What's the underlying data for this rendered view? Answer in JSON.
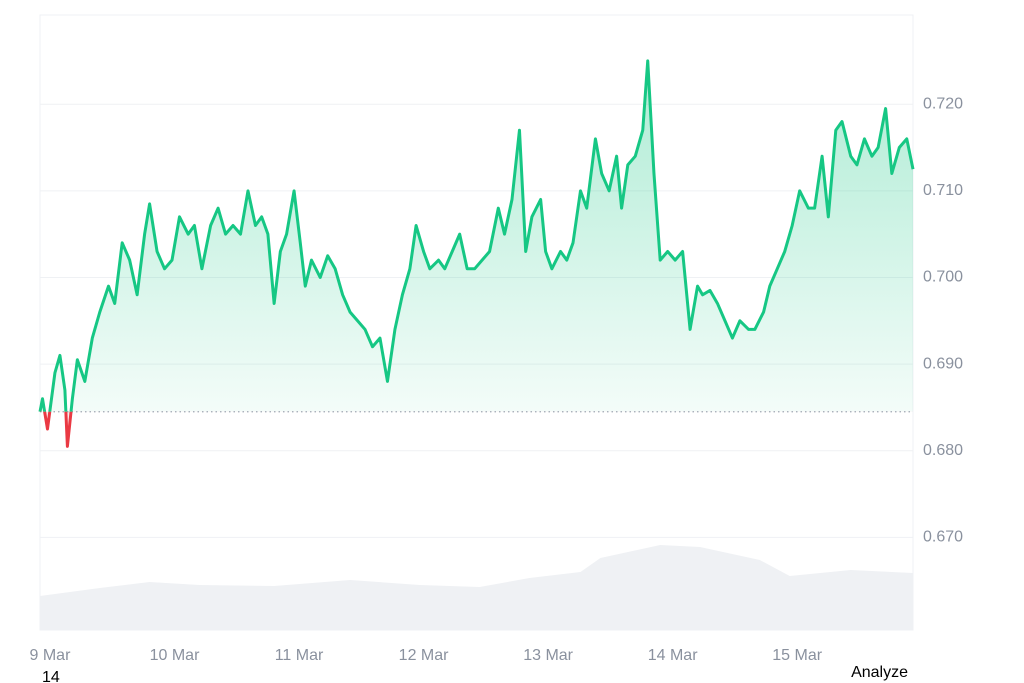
{
  "chart_data": {
    "type": "line",
    "x": [
      8.92,
      8.94,
      8.98,
      9.04,
      9.08,
      9.12,
      9.14,
      9.18,
      9.22,
      9.28,
      9.34,
      9.4,
      9.47,
      9.52,
      9.58,
      9.64,
      9.7,
      9.76,
      9.8,
      9.86,
      9.92,
      9.98,
      10.04,
      10.11,
      10.16,
      10.22,
      10.29,
      10.35,
      10.41,
      10.47,
      10.53,
      10.59,
      10.65,
      10.7,
      10.75,
      10.8,
      10.85,
      10.9,
      10.96,
      11.01,
      11.05,
      11.1,
      11.17,
      11.23,
      11.29,
      11.35,
      11.41,
      11.47,
      11.53,
      11.59,
      11.65,
      11.71,
      11.77,
      11.83,
      11.89,
      11.94,
      12.0,
      12.05,
      12.12,
      12.17,
      12.23,
      12.29,
      12.35,
      12.41,
      12.47,
      12.53,
      12.6,
      12.65,
      12.71,
      12.77,
      12.82,
      12.87,
      12.94,
      12.98,
      13.03,
      13.1,
      13.15,
      13.2,
      13.26,
      13.31,
      13.38,
      13.43,
      13.49,
      13.55,
      13.59,
      13.64,
      13.7,
      13.76,
      13.8,
      13.85,
      13.9,
      13.96,
      14.02,
      14.08,
      14.14,
      14.2,
      14.24,
      14.3,
      14.36,
      14.42,
      14.48,
      14.54,
      14.61,
      14.66,
      14.73,
      14.78,
      14.84,
      14.9,
      14.96,
      15.02,
      15.09,
      15.14,
      15.2,
      15.25,
      15.31,
      15.36,
      15.43,
      15.48,
      15.54,
      15.6,
      15.65,
      15.71,
      15.76,
      15.82,
      15.88,
      15.93
    ],
    "series": [
      {
        "color": "#16c784",
        "below_color": "#ea3943",
        "values": [
          0.6845,
          0.686,
          0.6825,
          0.689,
          0.691,
          0.687,
          0.6805,
          0.686,
          0.6905,
          0.688,
          0.693,
          0.696,
          0.699,
          0.697,
          0.704,
          0.702,
          0.698,
          0.705,
          0.7085,
          0.703,
          0.701,
          0.702,
          0.707,
          0.705,
          0.706,
          0.701,
          0.706,
          0.708,
          0.705,
          0.706,
          0.705,
          0.71,
          0.706,
          0.707,
          0.705,
          0.697,
          0.703,
          0.705,
          0.71,
          0.704,
          0.699,
          0.702,
          0.7,
          0.7025,
          0.701,
          0.698,
          0.696,
          0.695,
          0.694,
          0.692,
          0.693,
          0.688,
          0.694,
          0.698,
          0.701,
          0.706,
          0.703,
          0.701,
          0.702,
          0.701,
          0.703,
          0.705,
          0.701,
          0.701,
          0.702,
          0.703,
          0.708,
          0.705,
          0.709,
          0.717,
          0.703,
          0.707,
          0.709,
          0.703,
          0.701,
          0.703,
          0.702,
          0.704,
          0.71,
          0.708,
          0.716,
          0.712,
          0.71,
          0.714,
          0.708,
          0.713,
          0.714,
          0.717,
          0.725,
          0.712,
          0.702,
          0.703,
          0.702,
          0.703,
          0.694,
          0.699,
          0.698,
          0.6985,
          0.697,
          0.695,
          0.693,
          0.695,
          0.694,
          0.694,
          0.696,
          0.699,
          0.701,
          0.703,
          0.706,
          0.71,
          0.708,
          0.708,
          0.714,
          0.707,
          0.717,
          0.718,
          0.714,
          0.713,
          0.716,
          0.714,
          0.715,
          0.7195,
          0.712,
          0.715,
          0.716,
          0.7125
        ]
      }
    ],
    "baseline": 0.6845,
    "volume": {
      "color": "#eff1f4",
      "x": [
        8.92,
        9.4,
        9.8,
        10.2,
        10.8,
        11.41,
        11.97,
        12.45,
        12.85,
        13.26,
        13.42,
        13.9,
        14.22,
        14.7,
        14.94,
        15.43,
        15.93
      ],
      "values": [
        34,
        42,
        48,
        45,
        44,
        50,
        45,
        43,
        52,
        58,
        72,
        85,
        83,
        70,
        54,
        60,
        57
      ],
      "vlim": [
        0,
        130
      ]
    },
    "xlim": [
      8.92,
      15.93
    ],
    "xticks": [
      {
        "value": 9,
        "label": "9 Mar"
      },
      {
        "value": 10,
        "label": "10 Mar"
      },
      {
        "value": 11,
        "label": "11 Mar"
      },
      {
        "value": 12,
        "label": "12 Mar"
      },
      {
        "value": 13,
        "label": "13 Mar"
      },
      {
        "value": 14,
        "label": "14 Mar"
      },
      {
        "value": 15,
        "label": "15 Mar"
      }
    ],
    "ylim": [
      0.6593,
      0.7303
    ],
    "yticks": [
      {
        "value": 0.67,
        "label": "0.670"
      },
      {
        "value": 0.68,
        "label": "0.680"
      },
      {
        "value": 0.69,
        "label": "0.690"
      },
      {
        "value": 0.7,
        "label": "0.700"
      },
      {
        "value": 0.71,
        "label": "0.710"
      },
      {
        "value": 0.72,
        "label": "0.720"
      }
    ],
    "grid": true
  },
  "footer": {
    "left": "14",
    "right": "Analyze"
  }
}
